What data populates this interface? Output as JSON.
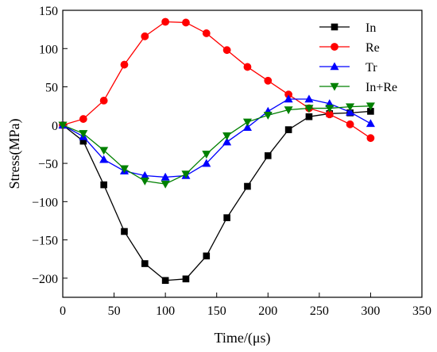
{
  "chart_data": {
    "type": "line",
    "xlabel": "Time/(μs)",
    "ylabel": "Stress(MPa)",
    "xlim": [
      0,
      350
    ],
    "ylim": [
      -225,
      150
    ],
    "xticks": [
      0,
      50,
      100,
      150,
      200,
      250,
      300,
      350
    ],
    "yticks": [
      150,
      100,
      50,
      0,
      -50,
      -100,
      -150,
      -200
    ],
    "xtick_labels": [
      "0",
      "50",
      "100",
      "150",
      "200",
      "250",
      "300",
      "350"
    ],
    "ytick_labels": [
      "150",
      "100",
      "50",
      "0",
      "−50",
      "−100",
      "−150",
      "−200"
    ],
    "grid": false,
    "legend_position": "top-right",
    "x": [
      0,
      20,
      40,
      60,
      80,
      100,
      120,
      140,
      160,
      180,
      200,
      220,
      240,
      260,
      280,
      300
    ],
    "series": [
      {
        "name": "In",
        "color": "#000000",
        "marker": "square",
        "values": [
          0,
          -21,
          -78,
          -139,
          -181,
          -203,
          -201,
          -171,
          -121,
          -80,
          -40,
          -6,
          11,
          15,
          16,
          18
        ]
      },
      {
        "name": "Re",
        "color": "#ff0000",
        "marker": "circle",
        "values": [
          0,
          8,
          32,
          79,
          116,
          135,
          134,
          120,
          98,
          76,
          58,
          40,
          22,
          14,
          1,
          -17
        ]
      },
      {
        "name": "Tr",
        "color": "#0000ff",
        "marker": "triangle-up",
        "values": [
          0,
          -15,
          -45,
          -60,
          -66,
          -68,
          -66,
          -50,
          -22,
          -3,
          18,
          34,
          34,
          28,
          17,
          2
        ]
      },
      {
        "name": "In+Re",
        "color": "#008000",
        "marker": "triangle-down",
        "values": [
          0,
          -11,
          -33,
          -57,
          -73,
          -77,
          -64,
          -38,
          -14,
          4,
          13,
          20,
          22,
          22,
          24,
          25
        ]
      }
    ]
  }
}
